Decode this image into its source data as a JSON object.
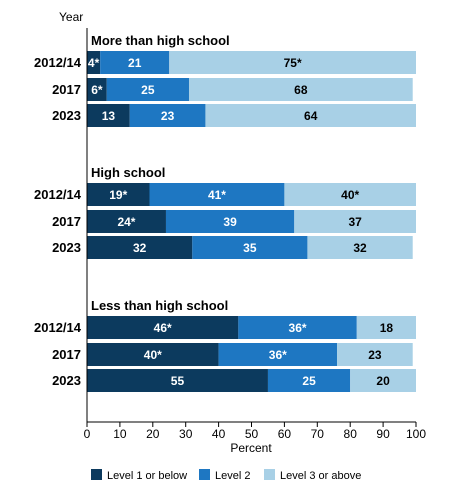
{
  "chart_data": {
    "type": "bar",
    "orientation": "horizontal",
    "stacked": true,
    "y_axis_title": "Year",
    "xlabel": "Percent",
    "xlim": [
      0,
      100
    ],
    "xticks": [
      0,
      10,
      20,
      30,
      40,
      50,
      60,
      70,
      80,
      90,
      100
    ],
    "grid": false,
    "legend_position": "bottom",
    "series": [
      {
        "name": "Level 1 or below",
        "color": "#0c3a5e"
      },
      {
        "name": "Level 2",
        "color": "#1e77c2"
      },
      {
        "name": "Level 3 or above",
        "color": "#a8d0e6"
      }
    ],
    "groups": [
      {
        "title": "More than high school",
        "rows": [
          {
            "year": "2012/14",
            "values": [
              4,
              21,
              75
            ],
            "labels": [
              "4*",
              "21",
              "75*"
            ]
          },
          {
            "year": "2017",
            "values": [
              6,
              25,
              68
            ],
            "labels": [
              "6*",
              "25",
              "68"
            ]
          },
          {
            "year": "2023",
            "values": [
              13,
              23,
              64
            ],
            "labels": [
              "13",
              "23",
              "64"
            ]
          }
        ]
      },
      {
        "title": "High school",
        "rows": [
          {
            "year": "2012/14",
            "values": [
              19,
              41,
              40
            ],
            "labels": [
              "19*",
              "41*",
              "40*"
            ]
          },
          {
            "year": "2017",
            "values": [
              24,
              39,
              37
            ],
            "labels": [
              "24*",
              "39",
              "37"
            ]
          },
          {
            "year": "2023",
            "values": [
              32,
              35,
              32
            ],
            "labels": [
              "32",
              "35",
              "32"
            ]
          }
        ]
      },
      {
        "title": "Less than high school",
        "rows": [
          {
            "year": "2012/14",
            "values": [
              46,
              36,
              18
            ],
            "labels": [
              "46*",
              "36*",
              "18"
            ]
          },
          {
            "year": "2017",
            "values": [
              40,
              36,
              23
            ],
            "labels": [
              "40*",
              "36*",
              "23"
            ]
          },
          {
            "year": "2023",
            "values": [
              55,
              25,
              20
            ],
            "labels": [
              "55",
              "25",
              "20"
            ]
          }
        ]
      }
    ]
  }
}
